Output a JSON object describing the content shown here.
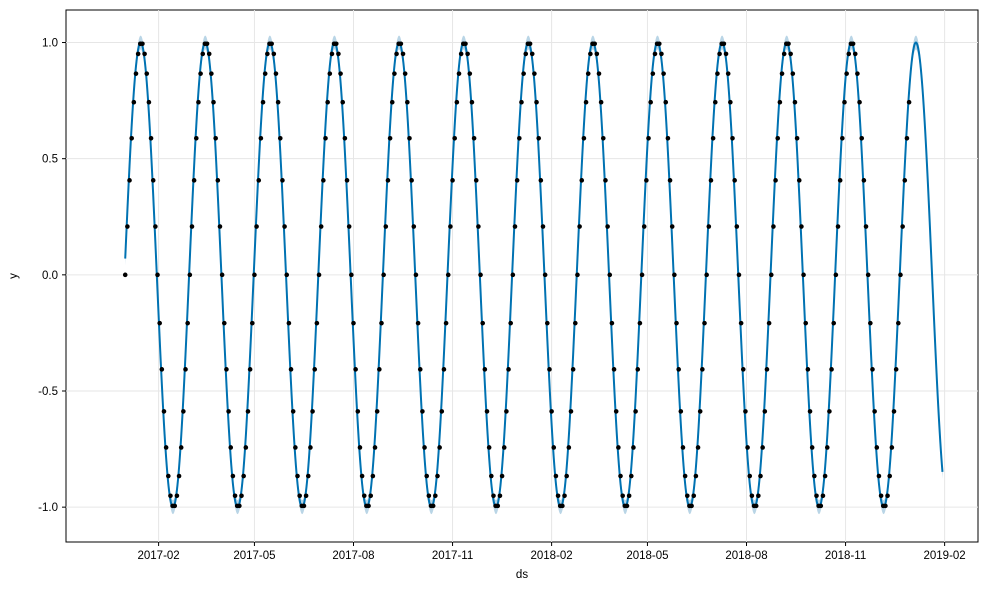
{
  "chart_data": {
    "type": "line",
    "title": "",
    "xlabel": "ds",
    "ylabel": "y",
    "x_ticks": [
      "2017-02",
      "2017-05",
      "2017-08",
      "2017-11",
      "2018-02",
      "2018-05",
      "2018-08",
      "2018-11",
      "2019-02"
    ],
    "y_ticks": [
      "-1.0",
      "-0.5",
      "0.0",
      "0.5",
      "1.0"
    ],
    "y_tick_values": [
      -1.0,
      -0.5,
      0.0,
      0.5,
      1.0
    ],
    "xlim": [
      "2016-11-07",
      "2019-03-04"
    ],
    "ylim": [
      -1.15,
      1.14
    ],
    "grid": true,
    "observed": {
      "start": "2017-01-01",
      "end": "2018-12-31",
      "frequency": "daily, every 2nd day plotted",
      "formula": "sin(2*pi*(day_index)/60)",
      "period_days": 60,
      "first_point": [
        "2017-01-01",
        0.0
      ],
      "marker_color": "#000000"
    },
    "forecast": {
      "start": "2017-01-01",
      "end": "2019-01-30",
      "formula": "sin(2*pi*(day_index)/60 + 0.07)",
      "line_color": "#0072B2",
      "interval_color": "#a8cbe0",
      "interval_half_width": 0.03
    },
    "series": [
      {
        "name": "",
        "role": "observed points"
      },
      {
        "name": "",
        "role": "forecast line with uncertainty band"
      }
    ]
  }
}
